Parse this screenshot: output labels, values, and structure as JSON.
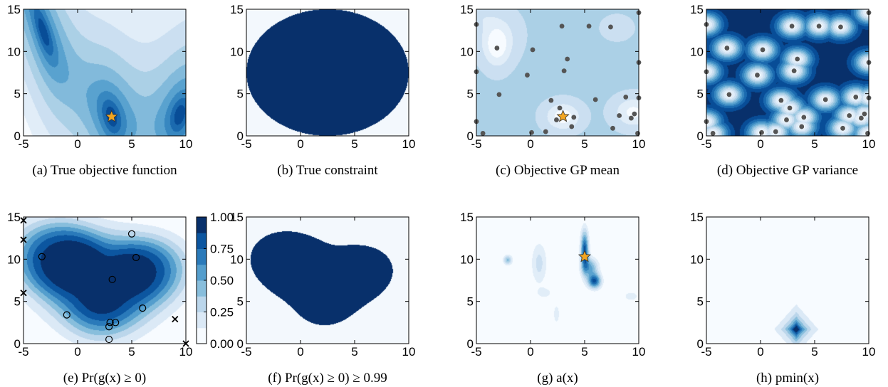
{
  "colors": {
    "dark": "#08306b",
    "mid": "#4a8cc6",
    "light": "#c6dbef",
    "pale": "#f3f8fd",
    "dot": "#555555",
    "star": "#f2a521"
  },
  "panels": [
    {
      "id": "a",
      "caption": "(a)  True objective function",
      "xticks": [
        "-5",
        "0",
        "5",
        "10"
      ],
      "yticks": [
        "0",
        "5",
        "10",
        "15"
      ],
      "xlim": [
        -5,
        10
      ],
      "ylim": [
        0,
        15
      ],
      "kind": "objective",
      "star": [
        3.14,
        2.27
      ]
    },
    {
      "id": "b",
      "caption": "(b)  True constraint",
      "xticks": [
        "-5",
        "0",
        "5",
        "10"
      ],
      "yticks": [
        "0",
        "5",
        "10",
        "15"
      ],
      "xlim": [
        -5,
        10
      ],
      "ylim": [
        0,
        15
      ],
      "kind": "circle",
      "center": [
        2.5,
        7.5
      ],
      "radius": 7.5
    },
    {
      "id": "c",
      "caption": "(c)  Objective GP mean",
      "xticks": [
        "-5",
        "0",
        "5",
        "10"
      ],
      "yticks": [
        "0",
        "5",
        "10",
        "15"
      ],
      "xlim": [
        -5,
        10
      ],
      "ylim": [
        0,
        15
      ],
      "kind": "gpmean",
      "star": [
        3.0,
        2.3
      ],
      "points": [
        [
          -5,
          13.2
        ],
        [
          -5,
          7.6
        ],
        [
          -5,
          1.7
        ],
        [
          -3.1,
          10.4
        ],
        [
          -2.9,
          4.9
        ],
        [
          -4.4,
          0.3
        ],
        [
          -0.3,
          7.2
        ],
        [
          0.1,
          0.4
        ],
        [
          0.2,
          10.2
        ],
        [
          1.4,
          0.5
        ],
        [
          1.9,
          4.2
        ],
        [
          2.4,
          1.9
        ],
        [
          2.7,
          3.3
        ],
        [
          3.1,
          7.7
        ],
        [
          3.4,
          9.1
        ],
        [
          3.8,
          1.1
        ],
        [
          4.0,
          2.2
        ],
        [
          2.9,
          13.0
        ],
        [
          5.4,
          13.0
        ],
        [
          6.0,
          4.3
        ],
        [
          7.6,
          0.9
        ],
        [
          7.4,
          12.9
        ],
        [
          8.2,
          2.4
        ],
        [
          8.8,
          4.6
        ],
        [
          9.3,
          2.1
        ],
        [
          9.6,
          2.6
        ],
        [
          10,
          14.6
        ],
        [
          10,
          8.7
        ],
        [
          10,
          4.5
        ],
        [
          9.9,
          0.3
        ]
      ]
    },
    {
      "id": "d",
      "caption": "(d)  Objective GP variance",
      "xticks": [
        "-5",
        "0",
        "5",
        "10"
      ],
      "yticks": [
        "0",
        "5",
        "10",
        "15"
      ],
      "xlim": [
        -5,
        10
      ],
      "ylim": [
        0,
        15
      ],
      "kind": "gpvar",
      "points": [
        [
          -5,
          13.2
        ],
        [
          -5,
          7.6
        ],
        [
          -5,
          1.7
        ],
        [
          -3.1,
          10.4
        ],
        [
          -2.9,
          4.9
        ],
        [
          -4.4,
          0.3
        ],
        [
          -0.3,
          7.2
        ],
        [
          0.1,
          0.4
        ],
        [
          0.2,
          10.2
        ],
        [
          1.4,
          0.5
        ],
        [
          1.9,
          4.2
        ],
        [
          2.4,
          1.9
        ],
        [
          2.7,
          3.3
        ],
        [
          3.1,
          7.7
        ],
        [
          3.4,
          9.1
        ],
        [
          3.8,
          1.1
        ],
        [
          4.0,
          2.2
        ],
        [
          2.9,
          13.0
        ],
        [
          5.4,
          13.0
        ],
        [
          6.0,
          4.3
        ],
        [
          7.6,
          0.9
        ],
        [
          7.4,
          12.9
        ],
        [
          8.2,
          2.4
        ],
        [
          8.8,
          4.6
        ],
        [
          9.3,
          2.1
        ],
        [
          9.6,
          2.6
        ],
        [
          10,
          14.6
        ],
        [
          10,
          8.7
        ],
        [
          10,
          4.5
        ],
        [
          9.9,
          0.3
        ]
      ]
    },
    {
      "id": "e",
      "caption": "(e)  Pr(g(x) ≥ 0)",
      "xticks": [
        "-5",
        "0",
        "5",
        "10"
      ],
      "yticks": [
        "0",
        "5",
        "10",
        "15"
      ],
      "xlim": [
        -5,
        10
      ],
      "ylim": [
        0,
        15
      ],
      "kind": "prob",
      "circles": [
        [
          -3.3,
          10.3
        ],
        [
          3.2,
          7.6
        ],
        [
          5.0,
          13.0
        ],
        [
          -1.0,
          3.4
        ],
        [
          6.0,
          4.2
        ],
        [
          3.0,
          2.5
        ],
        [
          3.5,
          2.5
        ],
        [
          2.9,
          2.0
        ],
        [
          2.9,
          0.5
        ],
        [
          5.4,
          10.2
        ]
      ],
      "crosses": [
        [
          -5,
          14.6
        ],
        [
          -5,
          12.3
        ],
        [
          -5,
          6.0
        ],
        [
          9.0,
          2.9
        ],
        [
          10,
          0
        ]
      ],
      "colorbar": {
        "ticks": [
          "1.00",
          "0.75",
          "0.50",
          "0.25",
          "0.00"
        ]
      }
    },
    {
      "id": "f",
      "caption": "(f)  Pr(g(x) ≥ 0) ≥ 0.99",
      "xticks": [
        "-5",
        "0",
        "5",
        "10"
      ],
      "yticks": [
        "0",
        "5",
        "10",
        "15"
      ],
      "xlim": [
        -5,
        10
      ],
      "ylim": [
        0,
        15
      ],
      "kind": "blob"
    },
    {
      "id": "g",
      "caption": "(g)  a(x)",
      "xticks": [
        "-5",
        "0",
        "5",
        "10"
      ],
      "yticks": [
        "0",
        "5",
        "10",
        "15"
      ],
      "xlim": [
        -5,
        10
      ],
      "ylim": [
        0,
        15
      ],
      "kind": "acq",
      "star": [
        5.0,
        10.3
      ]
    },
    {
      "id": "h",
      "caption": "(h)  pmin(x)",
      "xticks": [
        "-5",
        "0",
        "5",
        "10"
      ],
      "yticks": [
        "0",
        "5",
        "10",
        "15"
      ],
      "xlim": [
        -5,
        10
      ],
      "ylim": [
        0,
        15
      ],
      "kind": "pmin",
      "peak": [
        3.3,
        1.7
      ]
    }
  ],
  "chart_data": [
    {
      "type": "heatmap",
      "title": "(a) True objective function",
      "xlim": [
        -5,
        10
      ],
      "ylim": [
        0,
        15
      ],
      "marker": {
        "shape": "star",
        "x": 3.14,
        "y": 2.27
      }
    },
    {
      "type": "heatmap",
      "title": "(b) True constraint",
      "xlim": [
        -5,
        10
      ],
      "ylim": [
        0,
        15
      ],
      "region": {
        "shape": "circle",
        "center": [
          2.5,
          7.5
        ],
        "radius": 7.5
      }
    },
    {
      "type": "heatmap",
      "title": "(c) Objective GP mean",
      "xlim": [
        -5,
        10
      ],
      "ylim": [
        0,
        15
      ],
      "marker": {
        "shape": "star",
        "x": 3.0,
        "y": 2.3
      }
    },
    {
      "type": "heatmap",
      "title": "(d) Objective GP variance",
      "xlim": [
        -5,
        10
      ],
      "ylim": [
        0,
        15
      ]
    },
    {
      "type": "heatmap",
      "title": "(e) Pr(g(x) ≥ 0)",
      "xlim": [
        -5,
        10
      ],
      "ylim": [
        0,
        15
      ],
      "colorbar_range": [
        0.0,
        1.0
      ]
    },
    {
      "type": "heatmap",
      "title": "(f) Pr(g(x) ≥ 0) ≥ 0.99",
      "xlim": [
        -5,
        10
      ],
      "ylim": [
        0,
        15
      ]
    },
    {
      "type": "heatmap",
      "title": "(g) a(x)",
      "xlim": [
        -5,
        10
      ],
      "ylim": [
        0,
        15
      ],
      "marker": {
        "shape": "star",
        "x": 5.0,
        "y": 10.3
      }
    },
    {
      "type": "heatmap",
      "title": "(h) pmin(x)",
      "xlim": [
        -5,
        10
      ],
      "ylim": [
        0,
        15
      ]
    }
  ]
}
